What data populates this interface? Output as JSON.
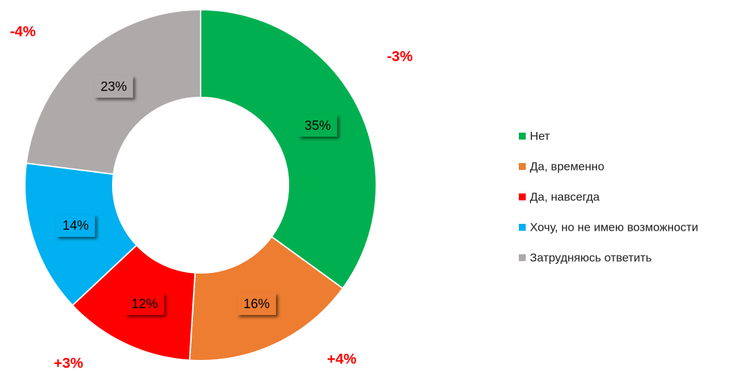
{
  "chart_data": {
    "type": "donut",
    "categories": [
      "Нет",
      "Да, временно",
      "Да, навсегда",
      "Хочу, но не имею возможности",
      "Затрудняюсь ответить"
    ],
    "values": [
      35,
      16,
      12,
      14,
      23
    ],
    "value_labels": [
      "35%",
      "16%",
      "12%",
      "14%",
      "23%"
    ],
    "colors": [
      "#00b050",
      "#ed7d31",
      "#ff0000",
      "#00b0f0",
      "#aeaaaa"
    ],
    "annotations": [
      "-3%",
      "+4%",
      "+3%",
      null,
      "-4%"
    ],
    "annotation_color": "#ff0000",
    "legend": "right"
  }
}
